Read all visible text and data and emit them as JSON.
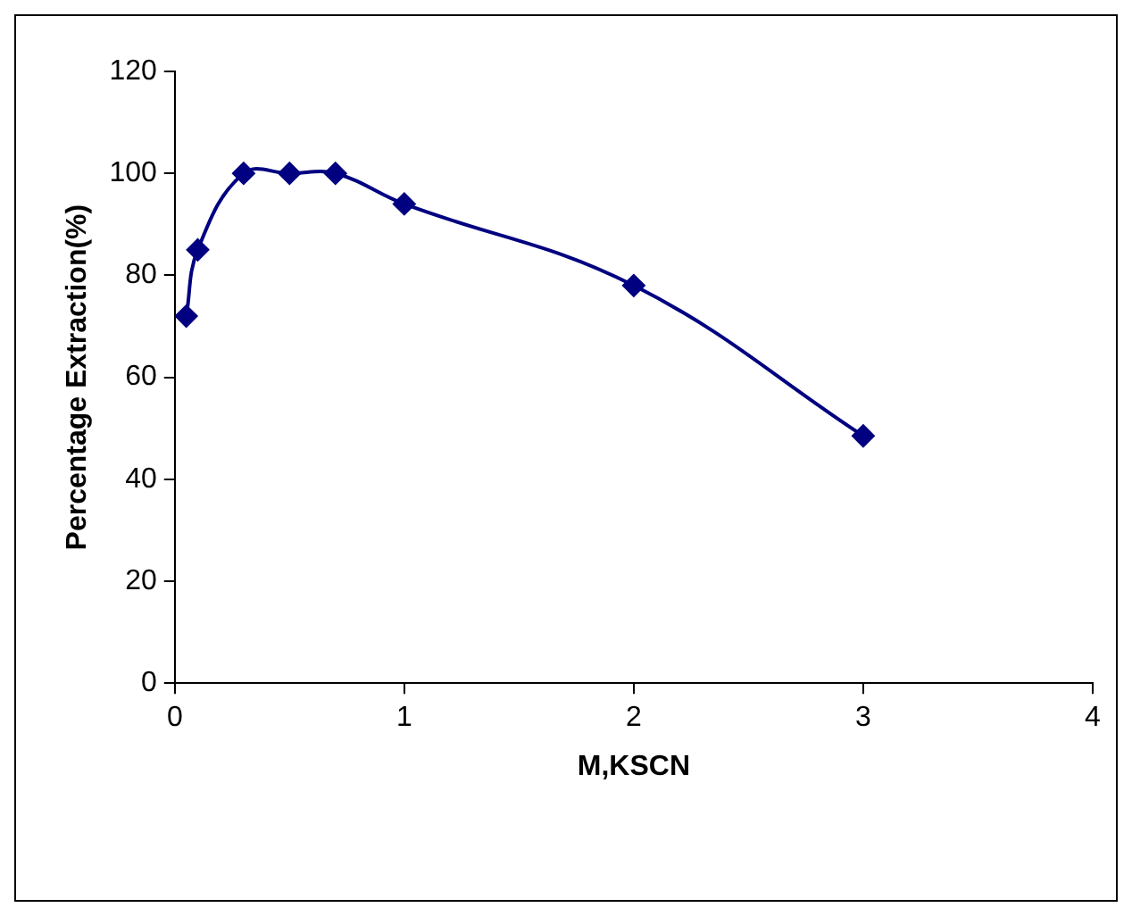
{
  "chart_data": {
    "type": "line",
    "xlabel": "M,KSCN",
    "ylabel": "Percentage Extraction(%)",
    "x": [
      0.05,
      0.1,
      0.3,
      0.5,
      0.7,
      1,
      2,
      3
    ],
    "series": [
      {
        "color": "#000080",
        "values": [
          72,
          85,
          100,
          100,
          100,
          94,
          78,
          48.5
        ]
      }
    ],
    "xlim": [
      0,
      4
    ],
    "xticks": [
      0,
      1,
      2,
      3,
      4
    ],
    "ylim": [
      0,
      120
    ],
    "yticks": [
      0,
      20,
      40,
      60,
      80,
      100,
      120
    ],
    "grid": false,
    "legend": false,
    "marker": "diamond",
    "line_style": "solid"
  }
}
